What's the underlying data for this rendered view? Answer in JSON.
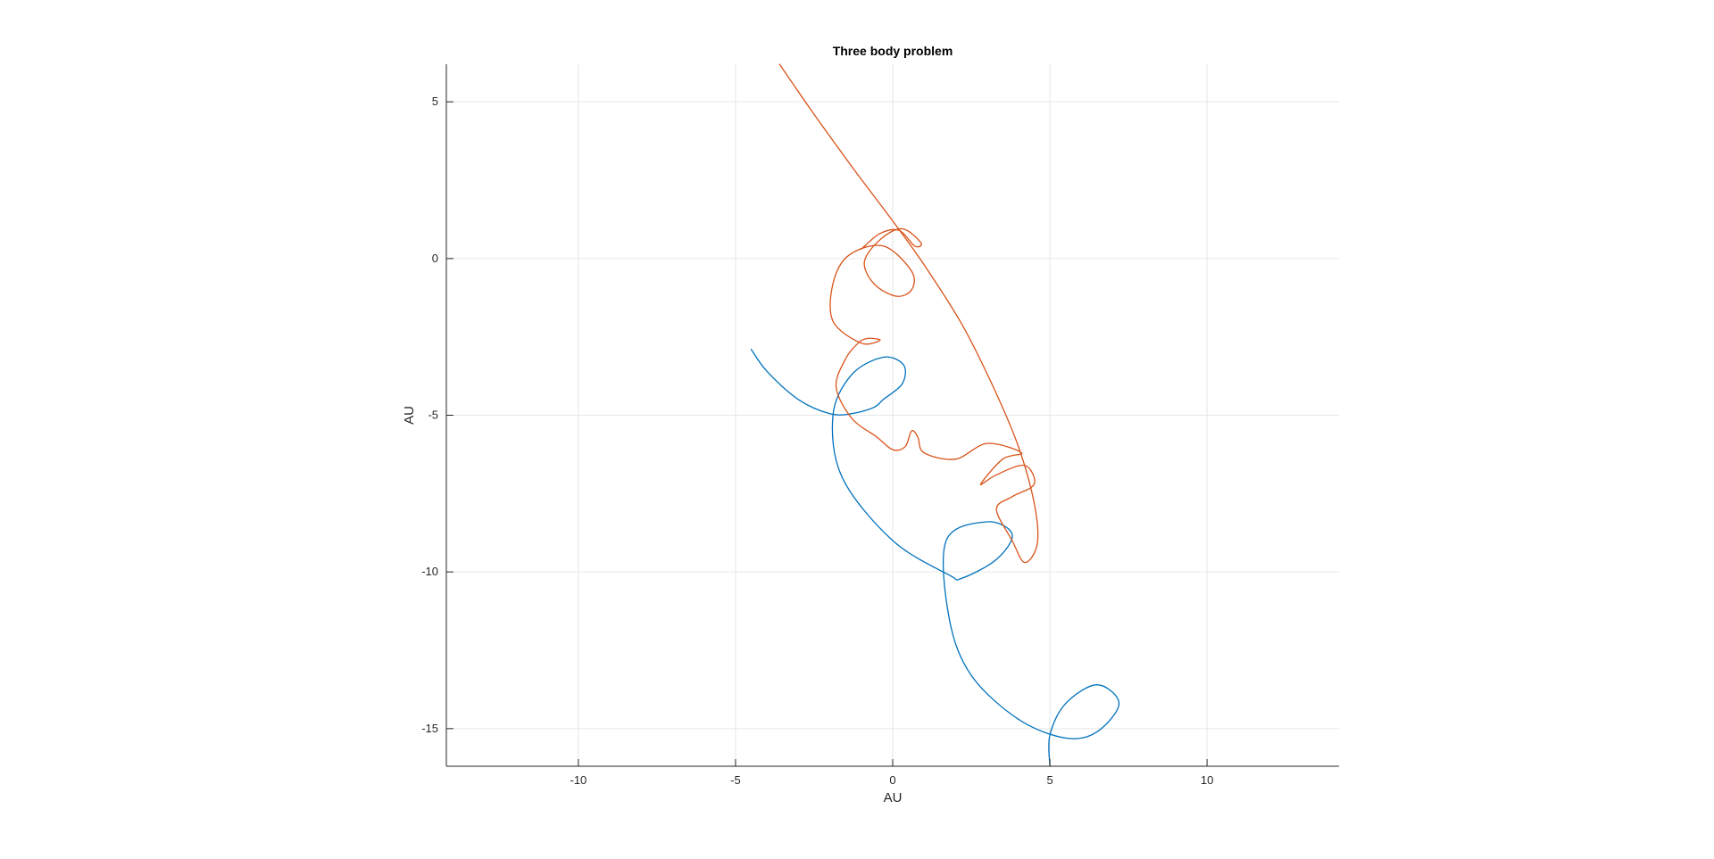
{
  "chart_data": {
    "type": "line",
    "title": "Three body problem",
    "xlabel": "AU",
    "ylabel": "AU",
    "xlim": [
      -14.2,
      14.2
    ],
    "ylim": [
      -16.2,
      6.2
    ],
    "xticks": [
      -10,
      -5,
      0,
      5,
      10
    ],
    "yticks": [
      -15,
      -10,
      -5,
      0,
      5
    ],
    "xtick_labels": [
      "-10",
      "-5",
      "0",
      "5",
      "10"
    ],
    "ytick_labels": [
      "-15",
      "-10",
      "-5",
      "0",
      "5"
    ],
    "grid": true,
    "colors": {
      "series1": "#0072BD",
      "series2": "#D95319",
      "grid": "#e6e6e6",
      "axis": "#262626"
    },
    "series": [
      {
        "color": "#0072BD",
        "x": [
          -4.5,
          -4.0,
          -3.0,
          -2.0,
          -1.3,
          -0.6,
          -0.3,
          0.3,
          0.35,
          -0.3,
          -1.3,
          -1.9,
          -1.6,
          0.0,
          1.8,
          2.2,
          3.3,
          3.8,
          3.0,
          1.7,
          1.8,
          2.5,
          4.0,
          5.5,
          6.5,
          7.2,
          6.5,
          5.5,
          5.0,
          5.0
        ],
        "y": [
          -2.9,
          -3.6,
          -4.5,
          -4.95,
          -4.95,
          -4.75,
          -4.5,
          -4.0,
          -3.4,
          -3.15,
          -3.7,
          -5.0,
          -7.0,
          -9.0,
          -10.1,
          -10.2,
          -9.6,
          -8.8,
          -8.4,
          -9.0,
          -11.5,
          -13.3,
          -14.7,
          -15.3,
          -15.1,
          -14.2,
          -13.6,
          -14.2,
          -15.2,
          -16.2
        ]
      },
      {
        "color": "#D95319",
        "x": [
          -3.6,
          -2.5,
          -1.2,
          0.0,
          1.0,
          2.2,
          3.2,
          4.0,
          4.5,
          4.6,
          4.2,
          3.8,
          3.3,
          3.8,
          4.5,
          4.2,
          3.3,
          2.8,
          3.5,
          4.1,
          3.0,
          2.0,
          1.0,
          0.8,
          0.6,
          0.4,
          0.0,
          -0.5,
          -1.3,
          -1.8,
          -1.5,
          -1.1,
          -0.8,
          -0.4,
          -1.0,
          -1.9,
          -1.9,
          -1.4,
          -0.3,
          0.6,
          0.6,
          0.1,
          -0.6,
          -0.9,
          -0.4,
          0.3,
          0.9,
          0.7,
          0.2,
          -0.4,
          -1.0
        ],
        "y": [
          6.2,
          4.6,
          2.8,
          1.2,
          -0.2,
          -2.1,
          -4.1,
          -6.0,
          -7.8,
          -9.1,
          -9.7,
          -9.0,
          -8.0,
          -7.6,
          -7.2,
          -6.6,
          -6.9,
          -7.2,
          -6.4,
          -6.2,
          -5.9,
          -6.4,
          -6.2,
          -5.7,
          -5.5,
          -6.0,
          -6.1,
          -5.7,
          -5.1,
          -4.1,
          -3.2,
          -2.7,
          -2.55,
          -2.6,
          -2.7,
          -2.0,
          -0.8,
          0.1,
          0.4,
          -0.4,
          -1.0,
          -1.2,
          -0.8,
          -0.1,
          0.6,
          0.95,
          0.5,
          0.4,
          0.9,
          0.8,
          0.3
        ]
      }
    ]
  }
}
